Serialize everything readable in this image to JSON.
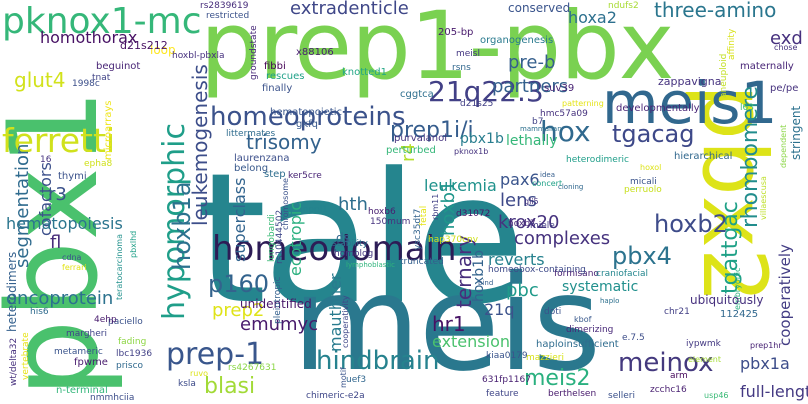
{
  "words": [
    {
      "text": "tale",
      "color": "#25858e"
    },
    {
      "text": "meis",
      "color": "#2a788e"
    },
    {
      "text": "pbx1",
      "color": "#4ac16d"
    },
    {
      "text": "prep1-pbx",
      "color": "#7ad151"
    },
    {
      "text": "pbx2",
      "color": "#dde318"
    },
    {
      "text": "meis1",
      "color": "#31688e"
    },
    {
      "text": "pknox1-mc",
      "color": "#35b779"
    },
    {
      "text": "homeodomain",
      "color": "#2d1c56"
    },
    {
      "text": "hypomorphic",
      "color": "#1f9e89"
    },
    {
      "text": "ferretti",
      "color": "#d0e11c"
    },
    {
      "text": "prep-1",
      "color": "#39568c"
    },
    {
      "text": "homeoproteins",
      "color": "#3b528b"
    },
    {
      "text": "21q22.3",
      "color": "#424086"
    },
    {
      "text": "hoxb1a",
      "color": "#2c728e"
    },
    {
      "text": "tgattgac",
      "color": "#1fa187"
    },
    {
      "text": "rhombomere",
      "color": "#228d8d"
    },
    {
      "text": "hindbrain",
      "color": "#26828e"
    },
    {
      "text": "meinox",
      "color": "#44397e"
    },
    {
      "text": "hox",
      "color": "#30698e"
    },
    {
      "text": "tgacag",
      "color": "#3e4989"
    },
    {
      "text": "prep1i/i",
      "color": "#365d8d"
    },
    {
      "text": "leukemogenesis",
      "color": "#3d4e8a"
    },
    {
      "text": "hoxb2",
      "color": "#3e4c8a"
    },
    {
      "text": "pbx4",
      "color": "#2c738e"
    },
    {
      "text": "p160",
      "color": "#33638d"
    },
    {
      "text": "blasi",
      "color": "#a2da37"
    },
    {
      "text": "segmentation",
      "color": "#2f6b8e"
    },
    {
      "text": "trisomy",
      "color": "#33628d"
    },
    {
      "text": "extradenticle",
      "color": "#3f4788"
    },
    {
      "text": "three-amino",
      "color": "#2a768e"
    },
    {
      "text": "glut4",
      "color": "#d2e21b"
    },
    {
      "text": "meis2",
      "color": "#2ab07f"
    },
    {
      "text": "emumyc",
      "color": "#481a6c"
    },
    {
      "text": "prep2",
      "color": "#dfe318"
    },
    {
      "text": "hr1",
      "color": "#471365"
    },
    {
      "text": "mauthner",
      "color": "#297b8e"
    },
    {
      "text": "ternary",
      "color": "#472e7c"
    },
    {
      "text": "superclass",
      "color": "#32648e"
    },
    {
      "text": "ecotropic",
      "color": "#2ab07f"
    },
    {
      "text": "cofactors",
      "color": "#3c508b"
    },
    {
      "text": "hoxb1",
      "color": "#1f968b"
    },
    {
      "text": "krox20",
      "color": "#46327e"
    },
    {
      "text": "reverts",
      "color": "#26818e"
    },
    {
      "text": "pbx1a",
      "color": "#3d4d8a"
    },
    {
      "text": "hematopoiesis",
      "color": "#2b758e"
    },
    {
      "text": "oncoprotein",
      "color": "#2c728e"
    },
    {
      "text": "homothorax",
      "color": "#471164"
    },
    {
      "text": "pre-b",
      "color": "#355f8d"
    },
    {
      "text": "partners",
      "color": "#34608d"
    },
    {
      "text": "hoxa2",
      "color": "#2d708e"
    },
    {
      "text": "exd",
      "color": "#46307e"
    },
    {
      "text": "pbc",
      "color": "#1f9a8a"
    },
    {
      "text": "lens",
      "color": "#3e4989"
    },
    {
      "text": "pax6",
      "color": "#3a548c"
    },
    {
      "text": "leukemia",
      "color": "#20928c"
    },
    {
      "text": "complexes",
      "color": "#46327e"
    },
    {
      "text": "extension",
      "color": "#4ac16d"
    },
    {
      "text": "cooperatively",
      "color": "#433d84"
    },
    {
      "text": "full-length",
      "color": "#443983"
    },
    {
      "text": "21q",
      "color": "#3b528b"
    },
    {
      "text": "systematic",
      "color": "#21908d"
    },
    {
      "text": "hth",
      "color": "#2e6e8e"
    },
    {
      "text": "r4",
      "color": "#b5de2b"
    },
    {
      "text": "r3",
      "color": "#3b518b"
    },
    {
      "text": "fl",
      "color": "#472c7a"
    },
    {
      "text": "hoxb1b",
      "color": "#33638d"
    },
    {
      "text": "pbx1b",
      "color": "#287d8e"
    },
    {
      "text": "lethally",
      "color": "#35b779"
    },
    {
      "text": "stringent",
      "color": "#2c718e"
    },
    {
      "text": "heterodimers",
      "color": "#34608d"
    },
    {
      "text": "unidentified",
      "color": "#481769"
    },
    {
      "text": "ds",
      "color": "#31678e"
    },
    {
      "text": "loop",
      "color": "#fde725"
    },
    {
      "text": "conserved",
      "color": "#3a548c"
    },
    {
      "text": "d21s212",
      "color": "#471063"
    },
    {
      "text": "beguinot",
      "color": "#482576"
    },
    {
      "text": "rs2839619",
      "color": "#472d7b"
    },
    {
      "text": "restricted",
      "color": "#3b528b"
    },
    {
      "text": "ndufs2",
      "color": "#a8db34"
    },
    {
      "text": "maternally",
      "color": "#482677"
    },
    {
      "text": "pe/pe",
      "color": "#46327e"
    },
    {
      "text": "chose",
      "color": "#46327e"
    },
    {
      "text": "hoxbl-pbxla",
      "color": "#46307e"
    },
    {
      "text": "x88106",
      "color": "#481f70"
    },
    {
      "text": "fibbi",
      "color": "#440154"
    },
    {
      "text": "rescues",
      "color": "#1fa188"
    },
    {
      "text": "finally",
      "color": "#3b528b"
    },
    {
      "text": "knotted1",
      "color": "#22a785"
    },
    {
      "text": "rsns",
      "color": "#31678e"
    },
    {
      "text": "meisl",
      "color": "#453882"
    },
    {
      "text": "205-bp",
      "color": "#481a6c"
    },
    {
      "text": "organogenesis",
      "color": "#297a8e"
    },
    {
      "text": "aneuploid",
      "color": "#c2df23"
    },
    {
      "text": "affinity",
      "color": "#d8e219"
    },
    {
      "text": "zappavigna",
      "color": "#46337f"
    },
    {
      "text": "patterning",
      "color": "#e5e419"
    },
    {
      "text": "developmentally",
      "color": "#482576"
    },
    {
      "text": "groundstate",
      "color": "#482979"
    },
    {
      "text": "hematopoietic",
      "color": "#39568c"
    },
    {
      "text": "gkfq",
      "color": "#38588c"
    },
    {
      "text": "cggtca",
      "color": "#2e6f8e"
    },
    {
      "text": "suv39",
      "color": "#482374"
    },
    {
      "text": "hmc57a09",
      "color": "#46327e"
    },
    {
      "text": "mammalian",
      "color": "#2d708e"
    },
    {
      "text": "b7",
      "color": "#414287"
    },
    {
      "text": "hierarchical",
      "color": "#31688e"
    },
    {
      "text": "l63",
      "color": "#3aba76"
    },
    {
      "text": "littermates",
      "color": "#2f6c8e"
    },
    {
      "text": "purvalanol",
      "color": "#46337f"
    },
    {
      "text": "perturbed",
      "color": "#35b779"
    },
    {
      "text": "pknox1b",
      "color": "#46337f"
    },
    {
      "text": "laurenzana",
      "color": "#3c4f8a"
    },
    {
      "text": "belong",
      "color": "#38598c"
    },
    {
      "text": "step",
      "color": "#2e6e8e"
    },
    {
      "text": "ker5cre",
      "color": "#482475"
    },
    {
      "text": "microarrays",
      "color": "#efe51c"
    },
    {
      "text": "1998c",
      "color": "#3c4f8a"
    },
    {
      "text": "tnat",
      "color": "#414487"
    },
    {
      "text": "thymi",
      "color": "#3b528b"
    },
    {
      "text": "16",
      "color": "#46337f"
    },
    {
      "text": "epha8",
      "color": "#d0e11c"
    },
    {
      "text": "heterodimeric",
      "color": "#1f9e89"
    },
    {
      "text": "hoxol",
      "color": "#dde318"
    },
    {
      "text": "micali",
      "color": "#3a548c"
    },
    {
      "text": "perruolo",
      "color": "#c8e020"
    },
    {
      "text": "villaescusa",
      "color": "#bddf26"
    },
    {
      "text": "dependent",
      "color": "#8bd646"
    },
    {
      "text": "d31072",
      "color": "#481769"
    },
    {
      "text": "idea",
      "color": "#355e8d"
    },
    {
      "text": "fetal",
      "color": "#e5e419"
    },
    {
      "text": "rbm11",
      "color": "#424086"
    },
    {
      "text": "inppl1",
      "color": "#25838e"
    },
    {
      "text": "chromosome",
      "color": "#3b528b"
    },
    {
      "text": "hoxb6",
      "color": "#482071"
    },
    {
      "text": "150mum",
      "color": "#46337f"
    },
    {
      "text": "ysc35dt7",
      "color": "#33638d"
    },
    {
      "text": "longobardi",
      "color": "#3aba76"
    },
    {
      "text": "rs10444502",
      "color": "#3f4889"
    },
    {
      "text": "concert",
      "color": "#1fa187"
    },
    {
      "text": "formisano",
      "color": "#482173"
    },
    {
      "text": "hoxb7",
      "color": "#482979"
    },
    {
      "text": "miele",
      "color": "#433e85"
    },
    {
      "text": "hap370cnv",
      "color": "#d0e11c"
    },
    {
      "text": "craniofacial",
      "color": "#24868e"
    },
    {
      "text": "homeobox-containing",
      "color": "#3e4a89"
    },
    {
      "text": "stability",
      "color": "#2c738e"
    },
    {
      "text": "homolog",
      "color": "#453781"
    },
    {
      "text": "truncated",
      "color": "#34608d"
    },
    {
      "text": "lymphoblastic",
      "color": "#2fb47c"
    },
    {
      "text": "bind",
      "color": "#355f8d"
    },
    {
      "text": "embryonic",
      "color": "#2ab07f"
    },
    {
      "text": "112425",
      "color": "#31688e"
    },
    {
      "text": "chr21",
      "color": "#423f85"
    },
    {
      "text": "ubiquitously",
      "color": "#46307e"
    },
    {
      "text": "e.7.5",
      "color": "#3d4e8a"
    },
    {
      "text": "kbof",
      "color": "#38588c"
    },
    {
      "text": "doti",
      "color": "#3b528b"
    },
    {
      "text": "dimerizing",
      "color": "#482878"
    },
    {
      "text": "iypwmk",
      "color": "#443a83"
    },
    {
      "text": "element",
      "color": "#a5db36"
    },
    {
      "text": "prep1hr",
      "color": "#482374"
    },
    {
      "text": "arm",
      "color": "#460a5d"
    },
    {
      "text": "zcchc16",
      "color": "#481f70"
    },
    {
      "text": "usp46",
      "color": "#3aba76"
    },
    {
      "text": "haploinsufficient",
      "color": "#2f6c8e"
    },
    {
      "text": "mazzieri",
      "color": "#d8e219"
    },
    {
      "text": "kiaa0179",
      "color": "#3a548c"
    },
    {
      "text": "631fp1167",
      "color": "#482071"
    },
    {
      "text": "feature",
      "color": "#404688"
    },
    {
      "text": "berthelsen",
      "color": "#481a6c"
    },
    {
      "text": "selleri",
      "color": "#3b518b"
    },
    {
      "text": "chimeric-e2a",
      "color": "#3f4788"
    },
    {
      "text": "uef3",
      "color": "#31678e"
    },
    {
      "text": "motif",
      "color": "#3a548c"
    },
    {
      "text": "cooperativity",
      "color": "#3f4788"
    },
    {
      "text": "pleiotropic",
      "color": "#34608d"
    },
    {
      "text": "rs4267631",
      "color": "#8bd646"
    },
    {
      "text": "ruvo",
      "color": "#dce319"
    },
    {
      "text": "ksla",
      "color": "#3e4c8a"
    },
    {
      "text": "nmmhciia",
      "color": "#3d4e8a"
    },
    {
      "text": "n-terminal",
      "color": "#32b67a"
    },
    {
      "text": "wt/delta32",
      "color": "#46307e"
    },
    {
      "text": "vertebrate",
      "color": "#e7e419"
    },
    {
      "text": "fpwme",
      "color": "#481c6e"
    },
    {
      "text": "metameric",
      "color": "#3a548c"
    },
    {
      "text": "margheri",
      "color": "#404588"
    },
    {
      "text": "lbc1936",
      "color": "#424186"
    },
    {
      "text": "prisco",
      "color": "#30698e"
    },
    {
      "text": "fading",
      "color": "#8ed645"
    },
    {
      "text": "paciello",
      "color": "#3b528b"
    },
    {
      "text": "4ehp",
      "color": "#481b6d"
    },
    {
      "text": "teratocarcinoma",
      "color": "#21918c"
    },
    {
      "text": "ferrari",
      "color": "#e2e418"
    },
    {
      "text": "cdna",
      "color": "#3b528b"
    },
    {
      "text": "his6",
      "color": "#2f6b8e"
    },
    {
      "text": "pbxlhd",
      "color": "#1fa088"
    },
    {
      "text": "d21s25",
      "color": "#424086"
    },
    {
      "text": "gli5",
      "color": "#46337f"
    },
    {
      "text": "cloning",
      "color": "#31688e"
    },
    {
      "text": "haplo",
      "color": "#2d708e"
    }
  ]
}
